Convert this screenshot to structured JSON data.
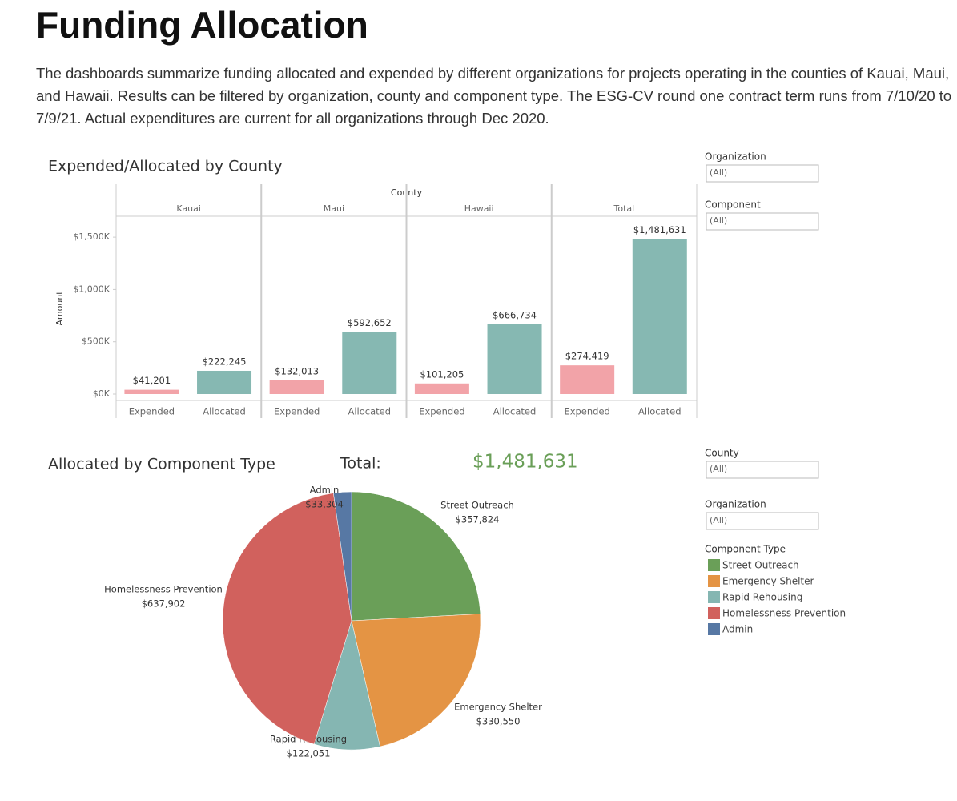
{
  "header": {
    "title": "Funding Allocation",
    "description": "The dashboards summarize funding allocated and expended by different organizations for projects operating in the counties of Kauai, Maui, and Hawaii. Results can be filtered by organization, county and component type. The ESG-CV round one contract term runs from 7/10/20 to 7/9/21.  Actual expenditures are current for all organizations through Dec 2020."
  },
  "filters": [
    {
      "label": "Organization",
      "value": "(All)"
    },
    {
      "label": "Component",
      "value": "(All)"
    },
    {
      "label": "County",
      "value": "(All)"
    },
    {
      "label": "Organization",
      "value": "(All)"
    }
  ],
  "chart_data": [
    {
      "type": "bar",
      "title": "Expended/Allocated by County",
      "column_header": "County",
      "y_label": "Amount",
      "categories": [
        "Kauai",
        "Maui",
        "Hawaii",
        "Total"
      ],
      "series": [
        {
          "name": "Expended",
          "color": "#f2a3a8",
          "values": [
            41201,
            132013,
            101205,
            274419
          ],
          "value_labels": [
            "$41,201",
            "$132,013",
            "$101,205",
            "$274,419"
          ]
        },
        {
          "name": "Allocated",
          "color": "#86b8b2",
          "values": [
            222245,
            592652,
            666734,
            1481631
          ],
          "value_labels": [
            "$222,245",
            "$592,652",
            "$666,734",
            "$1,481,631"
          ]
        }
      ],
      "ylim": [
        0,
        1700000
      ],
      "yticks": [
        {
          "value": 0,
          "label": "$0K"
        },
        {
          "value": 500000,
          "label": "$500K"
        },
        {
          "value": 1000000,
          "label": "$1,000K"
        },
        {
          "value": 1500000,
          "label": "$1,500K"
        }
      ]
    },
    {
      "type": "pie",
      "title": "Allocated by Component Type",
      "total_label": "Total:",
      "total_value": 1481631,
      "total_value_label": "$1,481,631",
      "total_color": "#6a9f58",
      "legend_title": "Component Type",
      "categories": [
        "Street Outreach",
        "Emergency Shelter",
        "Rapid Rehousing",
        "Homelessness Prevention",
        "Admin"
      ],
      "values": [
        357824,
        330550,
        122051,
        637902,
        33304
      ],
      "value_labels": [
        "$357,824",
        "$330,550",
        "$122,051",
        "$637,902",
        "$33,304"
      ],
      "colors": [
        "#6a9f58",
        "#e49444",
        "#85b6b2",
        "#d1615d",
        "#5778a4"
      ]
    }
  ]
}
